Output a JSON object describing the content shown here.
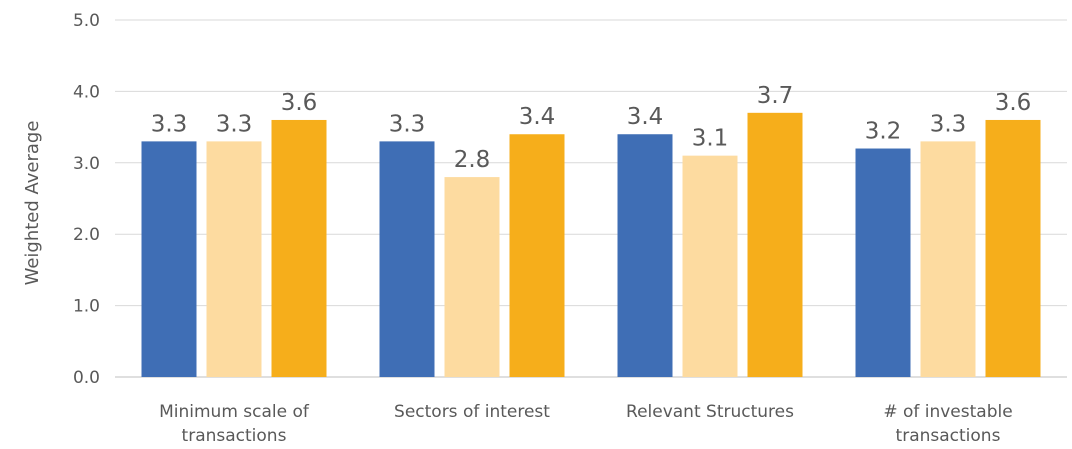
{
  "chart_data": {
    "type": "bar",
    "title": "",
    "xlabel": "",
    "ylabel": "Weighted Average",
    "ylim": [
      0,
      5
    ],
    "yticks": [
      "0.0",
      "1.0",
      "2.0",
      "3.0",
      "4.0",
      "5.0"
    ],
    "grid": true,
    "legend": "none",
    "categories": [
      [
        "Minimum scale of",
        "transactions"
      ],
      [
        "Sectors of interest"
      ],
      [
        "Relevant Structures"
      ],
      [
        "# of investable",
        "transactions"
      ]
    ],
    "series": [
      {
        "color": "#3F6EB5",
        "values": [
          3.3,
          3.3,
          3.4,
          3.2
        ],
        "labels": [
          "3.3",
          "3.3",
          "3.4",
          "3.2"
        ]
      },
      {
        "color": "#FDDBA0",
        "values": [
          3.3,
          2.8,
          3.1,
          3.3
        ],
        "labels": [
          "3.3",
          "2.8",
          "3.1",
          "3.3"
        ]
      },
      {
        "color": "#F6AE1B",
        "values": [
          3.6,
          3.4,
          3.7,
          3.6
        ],
        "labels": [
          "3.6",
          "3.4",
          "3.7",
          "3.6"
        ]
      }
    ]
  }
}
